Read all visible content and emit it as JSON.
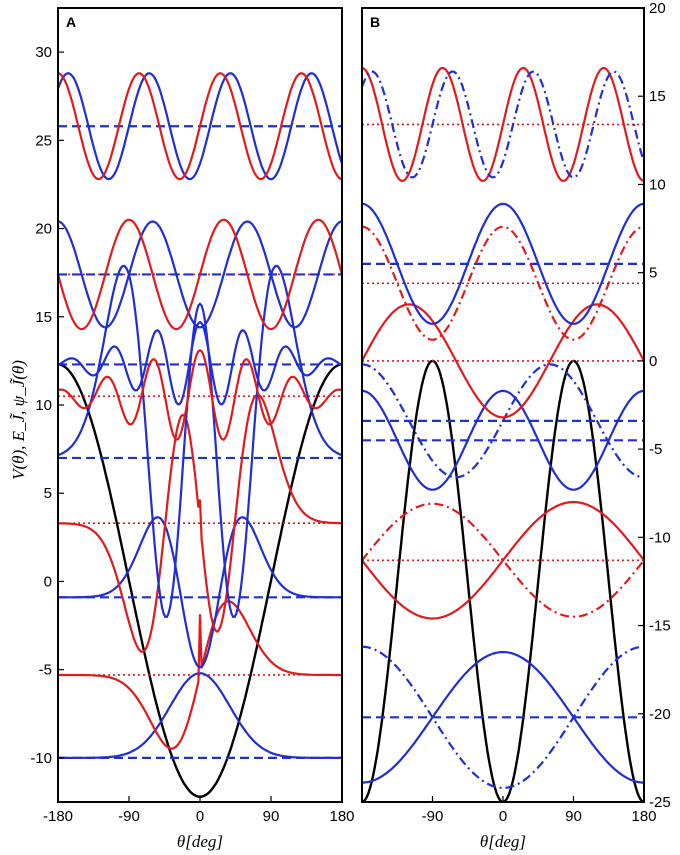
{
  "colors": {
    "potential": "#000000",
    "red": "#e31a1c",
    "blue": "#1f2ed6"
  },
  "ylabel": "V(θ), E_J̃, ψ_J̃(θ)",
  "chart_data": [
    {
      "panel": "A",
      "type": "line",
      "xlabel": "θ[deg]",
      "xlim": [
        -180,
        180
      ],
      "ylim": [
        -12.5,
        32.5
      ],
      "xticks": [
        "-180",
        "-90",
        "0",
        "90",
        "180"
      ],
      "yticks": [
        "-10",
        "-5",
        "0",
        "5",
        "10",
        "15",
        "20",
        "25",
        "30"
      ],
      "yaxis_side": "left",
      "potential": {
        "form": "cos-well",
        "amplitude": 12.25,
        "offset": 0,
        "period": 1
      },
      "levels": [
        {
          "color": "blue",
          "energy": -10.0,
          "style": "dashed"
        },
        {
          "color": "red",
          "energy": -5.3,
          "style": "dotted"
        },
        {
          "color": "blue",
          "energy": -0.9,
          "style": "dashed"
        },
        {
          "color": "red",
          "energy": 3.3,
          "style": "dotted"
        },
        {
          "color": "blue",
          "energy": 7.0,
          "style": "dashed"
        },
        {
          "color": "red",
          "energy": 10.5,
          "style": "dotted"
        },
        {
          "color": "blue",
          "energy": 12.3,
          "style": "dashed"
        },
        {
          "color": "red",
          "energy": 17.4,
          "style": "dotted"
        },
        {
          "color": "blue",
          "energy": 17.4,
          "style": "dashed"
        },
        {
          "color": "blue",
          "energy": 25.8,
          "style": "dashed"
        }
      ],
      "waves": [
        {
          "color": "blue",
          "style": "solid",
          "base": -10.0,
          "amp": 4.8,
          "kind": "gauss",
          "n": 0,
          "w": 38,
          "phase": 0
        },
        {
          "color": "red",
          "style": "solid",
          "base": -5.3,
          "amp": 4.0,
          "kind": "gauss",
          "n": 1,
          "w": 36,
          "phase": 0
        },
        {
          "color": "blue",
          "style": "solid",
          "base": -0.9,
          "amp": 3.6,
          "kind": "gauss",
          "n": 2,
          "w": 34,
          "phase": 0
        },
        {
          "color": "red",
          "style": "solid",
          "base": 3.3,
          "amp": 3.2,
          "kind": "gauss",
          "n": 3,
          "w": 36,
          "phase": 0
        },
        {
          "color": "blue",
          "style": "solid",
          "base": 7.0,
          "amp": 2.6,
          "kind": "gauss",
          "n": 4,
          "w": 40,
          "phase": 0
        },
        {
          "color": "blue",
          "style": "solid",
          "base": 12.3,
          "amp": 2.4,
          "kind": "wide",
          "n": 5,
          "w": 48,
          "phase": 0
        },
        {
          "color": "red",
          "style": "solid",
          "base": 10.5,
          "amp": 2.6,
          "kind": "wide",
          "n": 5,
          "w": 52,
          "phase": 0
        },
        {
          "color": "blue",
          "style": "solid",
          "base": 17.4,
          "amp": 3.0,
          "kind": "sin",
          "n": 6,
          "w": 0,
          "phase": 90
        },
        {
          "color": "red",
          "style": "solid",
          "base": 17.4,
          "amp": 3.1,
          "kind": "sin",
          "n": 6,
          "w": 0,
          "phase": 0
        },
        {
          "color": "blue",
          "style": "solid",
          "base": 25.8,
          "amp": 3.0,
          "kind": "sin",
          "n": 7,
          "w": 0,
          "phase": 90
        },
        {
          "color": "red",
          "style": "solid",
          "base": 25.8,
          "amp": 3.0,
          "kind": "sin",
          "n": 7,
          "w": 0,
          "phase": 0
        }
      ]
    },
    {
      "panel": "B",
      "type": "line",
      "xlabel": "θ[deg]",
      "xlim": [
        -180,
        180
      ],
      "ylim": [
        -25,
        20
      ],
      "xticks": [
        "-90",
        "0",
        "90",
        "180"
      ],
      "yticks": [
        "-25",
        "-20",
        "-15",
        "-10",
        "-5",
        "0",
        "5",
        "10",
        "15",
        "20"
      ],
      "yaxis_side": "right",
      "potential": {
        "form": "cos-double",
        "amplitude": 12.5,
        "offset": -12.5,
        "period": 2
      },
      "levels": [
        {
          "color": "blue",
          "energy": -20.2,
          "style": "dashed"
        },
        {
          "color": "red",
          "energy": -11.3,
          "style": "dotted"
        },
        {
          "color": "blue",
          "energy": -4.5,
          "style": "dashed"
        },
        {
          "color": "blue",
          "energy": -3.4,
          "style": "dashed"
        },
        {
          "color": "red",
          "energy": 0.0,
          "style": "dotted"
        },
        {
          "color": "red",
          "energy": 4.4,
          "style": "dotted"
        },
        {
          "color": "blue",
          "energy": 5.5,
          "style": "dashed"
        },
        {
          "color": "red",
          "energy": 13.4,
          "style": "dotted"
        }
      ],
      "waves": [
        {
          "color": "blue",
          "style": "solid",
          "base": -20.2,
          "amp": 3.7,
          "kind": "cos2",
          "n": 2,
          "w": 0,
          "phase": 0
        },
        {
          "color": "blue",
          "style": "dashdot",
          "base": -20.2,
          "amp": 4.0,
          "kind": "cos2",
          "n": 2,
          "w": 0,
          "phase": 180
        },
        {
          "color": "red",
          "style": "solid",
          "base": -11.3,
          "amp": 3.3,
          "kind": "sin",
          "n": 2,
          "w": 0,
          "phase": 0
        },
        {
          "color": "red",
          "style": "dashdot",
          "base": -11.3,
          "amp": 3.2,
          "kind": "sin",
          "n": 2,
          "w": 0,
          "phase": 180
        },
        {
          "color": "blue",
          "style": "solid",
          "base": -4.5,
          "amp": 2.8,
          "kind": "cos",
          "n": 4,
          "w": 0,
          "phase": 0
        },
        {
          "color": "blue",
          "style": "dashdot",
          "base": -3.4,
          "amp": 3.2,
          "kind": "sin",
          "n": 3,
          "w": 0,
          "phase": 0
        },
        {
          "color": "red",
          "style": "solid",
          "base": 0.0,
          "amp": 3.2,
          "kind": "sin",
          "n": 3,
          "w": 0,
          "phase": 180
        },
        {
          "color": "red",
          "style": "dashdot",
          "base": 4.4,
          "amp": 3.2,
          "kind": "cos",
          "n": 4,
          "w": 0,
          "phase": 0
        },
        {
          "color": "blue",
          "style": "solid",
          "base": 5.5,
          "amp": 3.4,
          "kind": "cos",
          "n": 4,
          "w": 0,
          "phase": 180
        },
        {
          "color": "red",
          "style": "solid",
          "base": 13.4,
          "amp": 3.2,
          "kind": "sin",
          "n": 7,
          "w": 0,
          "phase": 0
        },
        {
          "color": "blue",
          "style": "dashdot",
          "base": 13.4,
          "amp": 3.0,
          "kind": "sin",
          "n": 7,
          "w": 0,
          "phase": 90
        }
      ]
    }
  ]
}
